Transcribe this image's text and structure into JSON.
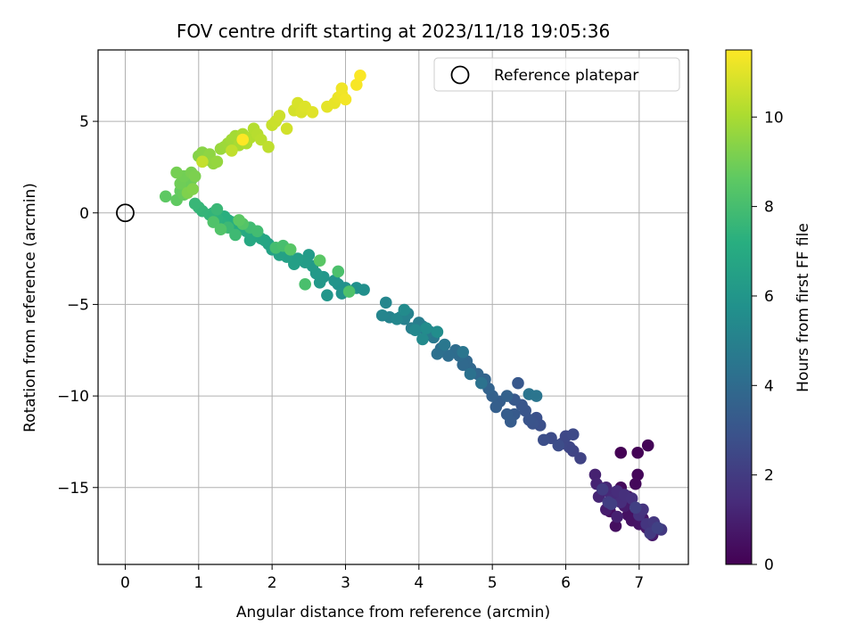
{
  "chart_data": {
    "type": "scatter",
    "title": "FOV centre drift starting at 2023/11/18 19:05:36",
    "xlabel": "Angular distance from reference (arcmin)",
    "ylabel": "Rotation from reference (arcmin)",
    "xlim": [
      -0.37,
      7.67
    ],
    "ylim": [
      -19.2,
      8.9
    ],
    "xticks": [
      0,
      1,
      2,
      3,
      4,
      5,
      6,
      7
    ],
    "yticks": [
      -15,
      -10,
      -5,
      0,
      5
    ],
    "grid": true,
    "legend": {
      "placement": "top-right",
      "label": "Reference platepar"
    },
    "reference_point": {
      "x": 0,
      "y": 0
    },
    "colorbar": {
      "label": "Hours from first FF file",
      "range": [
        0,
        11.5
      ],
      "ticks": [
        0,
        2,
        4,
        6,
        8,
        10
      ],
      "colormap": "viridis"
    },
    "series": [
      {
        "points": [
          [
            6.75,
            -13.1
          ],
          [
            6.98,
            -13.1
          ],
          [
            7.12,
            -12.7
          ],
          [
            6.98,
            -14.3
          ],
          [
            6.95,
            -14.8
          ],
          [
            6.75,
            -15.0
          ],
          [
            6.85,
            -15.5
          ],
          [
            6.6,
            -16.3
          ],
          [
            6.68,
            -17.1
          ],
          [
            6.85,
            -16.5
          ],
          [
            6.9,
            -16.8
          ],
          [
            7.0,
            -17.0
          ],
          [
            7.05,
            -16.7
          ],
          [
            7.1,
            -17.2
          ],
          [
            7.18,
            -17.6
          ],
          [
            6.8,
            -16.0
          ],
          [
            6.55,
            -16.2
          ],
          [
            7.22,
            -17.3
          ],
          [
            6.7,
            -16.6
          ],
          [
            6.4,
            -14.3
          ],
          [
            6.42,
            -14.8
          ],
          [
            6.45,
            -15.5
          ],
          [
            6.55,
            -15.0
          ],
          [
            6.6,
            -15.3
          ],
          [
            6.65,
            -15.6
          ],
          [
            6.7,
            -15.2
          ],
          [
            6.75,
            -15.8
          ],
          [
            6.8,
            -15.4
          ],
          [
            6.9,
            -15.6
          ],
          [
            7.0,
            -16.5
          ],
          [
            7.05,
            -16.2
          ],
          [
            7.1,
            -17.0
          ],
          [
            7.2,
            -16.9
          ],
          [
            7.3,
            -17.3
          ],
          [
            7.15,
            -17.5
          ],
          [
            6.5,
            -15.1
          ],
          [
            6.58,
            -15.8
          ],
          [
            6.62,
            -15.9
          ],
          [
            6.95,
            -16.1
          ],
          [
            7.25,
            -17.2
          ],
          [
            6.2,
            -13.4
          ],
          [
            6.1,
            -13.0
          ],
          [
            6.05,
            -12.8
          ],
          [
            5.95,
            -12.6
          ],
          [
            6.0,
            -12.2
          ],
          [
            6.1,
            -12.1
          ],
          [
            5.8,
            -12.3
          ],
          [
            5.9,
            -12.7
          ],
          [
            5.7,
            -12.4
          ],
          [
            5.65,
            -11.6
          ],
          [
            5.6,
            -11.2
          ],
          [
            5.55,
            -11.5
          ],
          [
            5.5,
            -11.3
          ],
          [
            5.45,
            -10.8
          ],
          [
            5.4,
            -10.5
          ],
          [
            5.35,
            -9.3
          ],
          [
            5.3,
            -10.2
          ],
          [
            5.3,
            -11.0
          ],
          [
            5.25,
            -11.4
          ],
          [
            5.2,
            -11.0
          ],
          [
            5.1,
            -10.3
          ],
          [
            5.05,
            -10.6
          ],
          [
            5.0,
            -10.0
          ],
          [
            5.2,
            -10.0
          ],
          [
            4.95,
            -9.6
          ],
          [
            4.9,
            -9.1
          ],
          [
            4.8,
            -8.8
          ],
          [
            4.7,
            -8.5
          ],
          [
            4.65,
            -8.1
          ],
          [
            4.6,
            -8.3
          ],
          [
            4.55,
            -7.8
          ],
          [
            4.5,
            -7.5
          ],
          [
            4.4,
            -7.8
          ],
          [
            4.3,
            -7.4
          ],
          [
            4.25,
            -7.7
          ],
          [
            4.7,
            -8.8
          ],
          [
            4.85,
            -9.3
          ],
          [
            5.5,
            -9.9
          ],
          [
            5.6,
            -10.0
          ],
          [
            4.6,
            -7.6
          ],
          [
            4.35,
            -7.2
          ],
          [
            4.2,
            -6.8
          ],
          [
            4.15,
            -6.5
          ],
          [
            4.1,
            -6.6
          ],
          [
            4.05,
            -6.2
          ],
          [
            4.0,
            -6.0
          ],
          [
            3.9,
            -6.3
          ],
          [
            3.8,
            -5.8
          ],
          [
            3.85,
            -5.5
          ],
          [
            3.75,
            -5.7
          ],
          [
            3.6,
            -5.7
          ],
          [
            3.5,
            -5.6
          ],
          [
            3.55,
            -4.9
          ],
          [
            3.7,
            -5.8
          ],
          [
            3.95,
            -6.4
          ],
          [
            4.05,
            -6.9
          ],
          [
            3.8,
            -5.3
          ],
          [
            4.1,
            -6.3
          ],
          [
            4.25,
            -6.5
          ],
          [
            3.25,
            -4.2
          ],
          [
            3.15,
            -4.1
          ],
          [
            3.0,
            -4.1
          ],
          [
            2.9,
            -3.9
          ],
          [
            2.95,
            -4.4
          ],
          [
            2.85,
            -3.7
          ],
          [
            2.75,
            -4.5
          ],
          [
            2.7,
            -3.5
          ],
          [
            2.65,
            -3.8
          ],
          [
            2.6,
            -3.3
          ],
          [
            2.55,
            -2.9
          ],
          [
            2.5,
            -2.3
          ],
          [
            2.45,
            -2.7
          ],
          [
            2.35,
            -2.5
          ],
          [
            2.3,
            -2.8
          ],
          [
            2.2,
            -2.4
          ],
          [
            2.1,
            -2.3
          ],
          [
            2.0,
            -2.0
          ],
          [
            1.95,
            -1.7
          ],
          [
            1.9,
            -1.5
          ],
          [
            1.85,
            -1.4
          ],
          [
            1.75,
            -1.2
          ],
          [
            1.7,
            -1.5
          ],
          [
            1.65,
            -1.0
          ],
          [
            1.55,
            -0.9
          ],
          [
            1.5,
            -0.7
          ],
          [
            1.45,
            -0.5
          ],
          [
            1.4,
            -0.4
          ],
          [
            1.35,
            -0.2
          ],
          [
            1.3,
            -0.5
          ],
          [
            1.25,
            -0.3
          ],
          [
            1.2,
            0.0
          ],
          [
            1.15,
            -0.1
          ],
          [
            1.05,
            0.1
          ],
          [
            1.0,
            0.3
          ],
          [
            0.95,
            0.5
          ],
          [
            1.25,
            0.2
          ],
          [
            1.4,
            -0.8
          ],
          [
            1.5,
            -1.2
          ],
          [
            1.7,
            -0.8
          ],
          [
            1.8,
            -1.0
          ],
          [
            2.05,
            -1.9
          ],
          [
            2.15,
            -1.8
          ],
          [
            2.45,
            -3.9
          ],
          [
            2.9,
            -3.2
          ],
          [
            3.05,
            -4.3
          ],
          [
            1.2,
            -0.5
          ],
          [
            1.3,
            -0.9
          ],
          [
            1.6,
            -0.6
          ],
          [
            2.25,
            -2.0
          ],
          [
            2.65,
            -2.6
          ],
          [
            1.55,
            -0.4
          ],
          [
            0.55,
            0.9
          ],
          [
            0.7,
            0.7
          ],
          [
            0.75,
            1.2
          ],
          [
            0.8,
            1.0
          ],
          [
            0.85,
            1.5
          ],
          [
            0.9,
            1.8
          ],
          [
            0.75,
            1.6
          ],
          [
            0.8,
            2.0
          ],
          [
            0.7,
            2.2
          ],
          [
            0.9,
            2.2
          ],
          [
            0.95,
            2.0
          ],
          [
            0.85,
            1.1
          ],
          [
            0.92,
            1.3
          ],
          [
            1.0,
            3.1
          ],
          [
            1.05,
            3.3
          ],
          [
            1.1,
            2.9
          ],
          [
            1.15,
            3.2
          ],
          [
            1.2,
            2.7
          ],
          [
            1.25,
            2.8
          ],
          [
            1.3,
            3.5
          ],
          [
            1.35,
            3.6
          ],
          [
            1.4,
            3.8
          ],
          [
            1.45,
            4.0
          ],
          [
            1.5,
            4.2
          ],
          [
            1.55,
            3.7
          ],
          [
            1.6,
            4.3
          ],
          [
            1.65,
            3.8
          ],
          [
            1.7,
            4.1
          ],
          [
            1.75,
            4.6
          ],
          [
            1.8,
            4.3
          ],
          [
            1.85,
            4.0
          ],
          [
            1.95,
            3.6
          ],
          [
            1.45,
            3.4
          ],
          [
            1.05,
            2.8
          ],
          [
            2.0,
            4.8
          ],
          [
            2.05,
            5.0
          ],
          [
            2.1,
            5.3
          ],
          [
            2.2,
            4.6
          ],
          [
            2.3,
            5.6
          ],
          [
            2.35,
            6.0
          ],
          [
            2.4,
            5.5
          ],
          [
            2.45,
            5.8
          ],
          [
            2.55,
            5.5
          ],
          [
            2.75,
            5.8
          ],
          [
            2.85,
            6.0
          ],
          [
            2.9,
            6.3
          ],
          [
            2.95,
            6.5
          ],
          [
            2.95,
            6.8
          ],
          [
            3.0,
            6.2
          ],
          [
            3.15,
            7.0
          ],
          [
            3.2,
            7.5
          ],
          [
            1.6,
            4.0
          ]
        ]
      }
    ]
  }
}
